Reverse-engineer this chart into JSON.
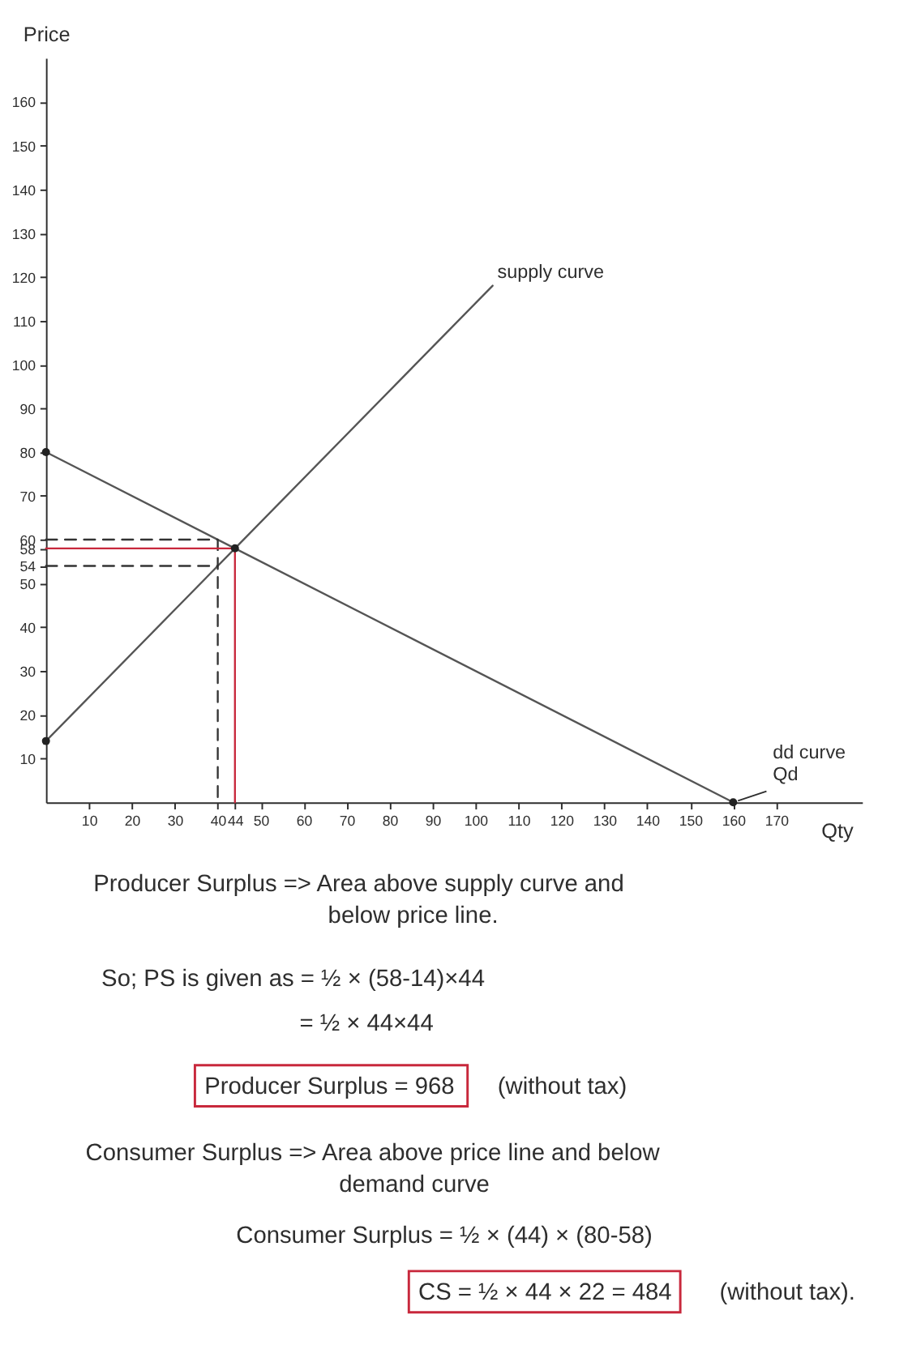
{
  "chart_data": {
    "type": "line",
    "xlabel": "Qty",
    "ylabel": "Price",
    "xlim": [
      0,
      190
    ],
    "ylim": [
      0,
      170
    ],
    "xticks": [
      10,
      20,
      30,
      40,
      44,
      50,
      60,
      70,
      80,
      90,
      100,
      110,
      120,
      130,
      140,
      150,
      160,
      170
    ],
    "yticks": [
      10,
      20,
      30,
      40,
      50,
      54,
      58,
      60,
      70,
      80,
      90,
      100,
      110,
      120,
      130,
      140,
      150,
      160
    ],
    "series": [
      {
        "type": "line",
        "color": "#555555",
        "x": [
          0,
          44,
          104
        ],
        "values": [
          14,
          58,
          118
        ]
      },
      {
        "type": "line",
        "color": "#555555",
        "x": [
          0,
          44,
          160
        ],
        "values": [
          80,
          58,
          0
        ]
      },
      {
        "type": "line",
        "color": "#333333",
        "line_style": "dashed",
        "x": [
          0,
          40,
          40
        ],
        "values": [
          60,
          60,
          0
        ]
      },
      {
        "type": "line",
        "color": "#333333",
        "line_style": "dashed",
        "x": [
          0,
          40
        ],
        "values": [
          54,
          54
        ]
      },
      {
        "type": "line",
        "color": "#c8283c",
        "x": [
          0,
          44,
          44
        ],
        "values": [
          58,
          58,
          0
        ]
      },
      {
        "type": "scatter",
        "color": "#222222",
        "marker": "circle",
        "x": [
          0,
          0,
          44,
          160
        ],
        "values": [
          80,
          14,
          58,
          0
        ]
      }
    ],
    "annotations": [
      {
        "text": "supply curve",
        "x": 104,
        "y": 118
      },
      {
        "text": "dd curve\nQd",
        "x": 160,
        "y": 0
      },
      "Producer Surplus => Area above supply curve and",
      "below price line.",
      "So; PS is given as = ½ × (58-14)×44",
      "= ½ × 44×44",
      "Producer Surplus = 968",
      "(without tax)",
      "Consumer Surplus => Area above price line and below",
      "demand curve",
      "Consumer Surplus = ½ × (44) × (80-58)",
      "CS = ½ × 44 × 22 = 484",
      "(without tax)."
    ]
  }
}
